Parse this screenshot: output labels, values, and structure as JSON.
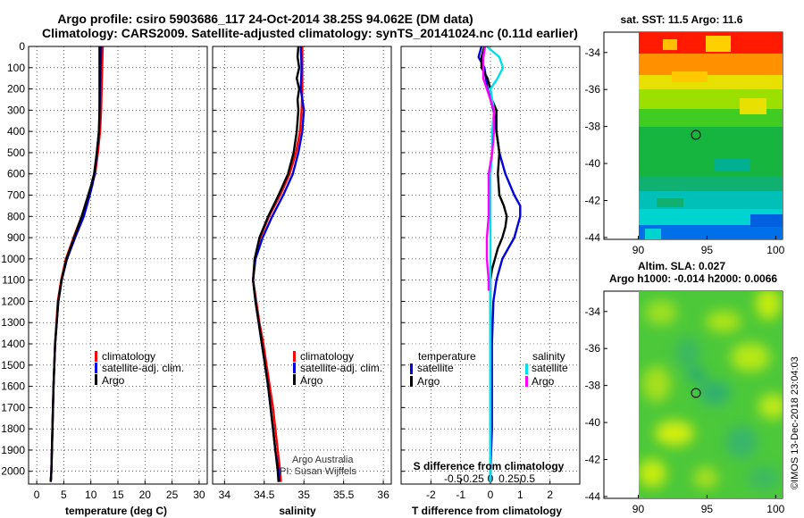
{
  "title_line1": "Argo profile: csiro 5903686_117 24-Oct-2014 38.25S 94.062E (DM data)",
  "title_line2": "Climatology: CARS2009. Satellite-adjusted climatology: synTS_20141024.nc (0.11d earlier)",
  "colors": {
    "climatology": "#ff0000",
    "satellite": "#0000dd",
    "argo": "#000000",
    "sal_satellite": "#00e0e8",
    "sal_argo": "#ff00ff"
  },
  "depth_ticks": [
    "0",
    "100",
    "200",
    "300",
    "400",
    "500",
    "600",
    "700",
    "800",
    "900",
    "1000",
    "1100",
    "1200",
    "1300",
    "1400",
    "1500",
    "1600",
    "1700",
    "1800",
    "1900",
    "2000"
  ],
  "chart_data": [
    {
      "type": "line",
      "xlabel": "temperature (deg C)",
      "ylabel": "",
      "xlim": [
        -1.5,
        31.5
      ],
      "ylim": [
        2060,
        0
      ],
      "xticks": [
        "0",
        "5",
        "10",
        "15",
        "20",
        "25",
        "30"
      ],
      "legend": [
        "climatology",
        "satellite-adj. clim.",
        "Argo"
      ],
      "series": [
        {
          "name": "climatology",
          "depth": [
            0,
            100,
            200,
            300,
            400,
            500,
            600,
            650,
            700,
            800,
            900,
            1000,
            1100,
            1200,
            1400,
            1600,
            1800,
            2000,
            2050
          ],
          "values": [
            12.2,
            12.1,
            12.0,
            11.9,
            11.7,
            11.3,
            10.8,
            10.2,
            9.6,
            8.3,
            6.8,
            5.4,
            4.5,
            3.9,
            3.4,
            3.1,
            2.9,
            2.7,
            2.6
          ]
        },
        {
          "name": "satellite-adj. clim.",
          "depth": [
            0,
            100,
            200,
            300,
            400,
            500,
            600,
            650,
            700,
            800,
            900,
            1000,
            1100,
            1200,
            1400,
            1600,
            1800,
            2000,
            2050
          ],
          "values": [
            11.9,
            11.8,
            11.7,
            11.6,
            11.5,
            11.1,
            10.7,
            10.3,
            9.8,
            8.7,
            7.1,
            5.6,
            4.6,
            4.0,
            3.4,
            3.1,
            2.9,
            2.7,
            2.6
          ]
        },
        {
          "name": "Argo",
          "depth": [
            0,
            100,
            200,
            300,
            400,
            500,
            600,
            650,
            700,
            800,
            900,
            1000,
            1100,
            1200,
            1400,
            1600,
            1800,
            2000,
            2050
          ],
          "values": [
            11.6,
            11.6,
            11.6,
            11.6,
            11.5,
            11.1,
            10.6,
            10.1,
            9.5,
            8.3,
            6.9,
            5.5,
            4.6,
            4.0,
            3.4,
            3.1,
            2.9,
            2.7,
            2.6
          ]
        }
      ]
    },
    {
      "type": "line",
      "xlabel": "salinity",
      "ylabel": "",
      "xlim": [
        33.85,
        36.1
      ],
      "ylim": [
        2060,
        0
      ],
      "xticks": [
        "34",
        "34.5",
        "35",
        "35.5",
        "36"
      ],
      "legend": [
        "climatology",
        "satellite-adj. clim.",
        "Argo"
      ],
      "annotation": [
        "Argo Australia",
        "PI: Susan Wijffels"
      ],
      "series": [
        {
          "name": "climatology",
          "depth": [
            0,
            100,
            200,
            300,
            400,
            500,
            600,
            700,
            800,
            900,
            1000,
            1100,
            1200,
            1300,
            1400,
            1500,
            1600,
            1700,
            1800,
            1900,
            2000,
            2050
          ],
          "values": [
            34.98,
            34.98,
            34.98,
            34.97,
            34.95,
            34.9,
            34.82,
            34.7,
            34.56,
            34.45,
            34.38,
            34.36,
            34.4,
            34.44,
            34.49,
            34.53,
            34.57,
            34.61,
            34.64,
            34.67,
            34.7,
            34.71
          ]
        },
        {
          "name": "satellite-adj. clim.",
          "depth": [
            0,
            100,
            200,
            300,
            400,
            500,
            600,
            700,
            800,
            900,
            1000,
            1100,
            1200,
            1300,
            1400,
            1500,
            1600,
            1700,
            1800,
            1900,
            2000,
            2050
          ],
          "values": [
            34.96,
            34.97,
            34.96,
            35.0,
            34.98,
            34.93,
            34.86,
            34.74,
            34.6,
            34.48,
            34.39,
            34.36,
            34.39,
            34.43,
            34.47,
            34.51,
            34.55,
            34.58,
            34.61,
            34.64,
            34.68,
            34.69
          ]
        },
        {
          "name": "Argo",
          "depth": [
            0,
            50,
            100,
            150,
            200,
            250,
            300,
            400,
            500,
            600,
            700,
            800,
            900,
            1000,
            1100,
            1200,
            1300,
            1400,
            1500,
            1600,
            1700,
            1800,
            1900,
            2000,
            2050
          ],
          "values": [
            34.93,
            34.92,
            34.94,
            34.91,
            34.94,
            34.92,
            34.93,
            34.91,
            34.87,
            34.8,
            34.68,
            34.55,
            34.44,
            34.38,
            34.36,
            34.39,
            34.43,
            34.47,
            34.51,
            34.55,
            34.58,
            34.61,
            34.64,
            34.67,
            34.68
          ]
        }
      ]
    },
    {
      "type": "line",
      "xlabel": "T difference from climatology",
      "xlabel_top": "S difference from climatology",
      "xlim": [
        -3.0,
        3.0
      ],
      "ylim": [
        2060,
        0
      ],
      "xticks": [
        "-2",
        "-1",
        "0",
        "1",
        "2"
      ],
      "xticks_top": [
        "-0.5",
        "-0.25",
        "0",
        "0.25",
        "0.5"
      ],
      "legend_left_title": "temperature",
      "legend_right_title": "salinity",
      "legend": [
        "satellite",
        "Argo"
      ],
      "series": [
        {
          "name": "temperature satellite",
          "depth": [
            0,
            50,
            100,
            200,
            300,
            400,
            500,
            600,
            700,
            750,
            800,
            850,
            900,
            950,
            1000,
            1050,
            1100,
            1200,
            1400,
            1600,
            1800,
            2000,
            2050
          ],
          "values": [
            -0.3,
            -0.4,
            -0.2,
            -0.1,
            0.1,
            0.2,
            0.3,
            0.5,
            0.8,
            1.0,
            1.0,
            0.9,
            0.8,
            0.6,
            0.4,
            0.3,
            0.2,
            0.1,
            0.05,
            0.05,
            0.05,
            0.0,
            0.0
          ]
        },
        {
          "name": "temperature Argo",
          "depth": [
            0,
            50,
            100,
            150,
            200,
            250,
            300,
            400,
            500,
            600,
            700,
            750,
            800,
            850,
            900,
            950,
            1000,
            1050,
            1100,
            1200,
            1400,
            1600,
            1800,
            2000,
            2050
          ],
          "values": [
            -0.2,
            -0.3,
            -0.3,
            -0.1,
            0.0,
            0.05,
            0.2,
            0.2,
            0.3,
            0.25,
            0.3,
            0.45,
            0.55,
            0.5,
            0.4,
            0.25,
            0.15,
            0.05,
            0.0,
            0.0,
            0.0,
            0.0,
            0.0,
            0.0,
            0.0
          ]
        },
        {
          "name": "salinity satellite",
          "depth": [
            0,
            50,
            100,
            150,
            200,
            300,
            400,
            500,
            600,
            700,
            800,
            900,
            1000,
            1100,
            1200,
            1400,
            1600,
            1800,
            2000,
            2050
          ],
          "values": [
            -0.02,
            0.05,
            0.07,
            0.04,
            0.0,
            0.02,
            0.01,
            0.01,
            0.0,
            0.0,
            0.0,
            0.0,
            0.0,
            0.0,
            0.0,
            0.0,
            0.0,
            0.0,
            0.0,
            0.0
          ]
        },
        {
          "name": "salinity Argo",
          "depth": [
            0,
            50,
            100,
            150,
            200,
            300,
            400,
            500,
            600,
            700,
            800,
            900,
            1000,
            1100,
            1150
          ],
          "values": [
            -0.03,
            -0.04,
            -0.04,
            -0.04,
            -0.02,
            0.02,
            0.02,
            0.01,
            -0.01,
            -0.01,
            -0.01,
            -0.02,
            -0.02,
            -0.01,
            -0.01
          ]
        }
      ]
    }
  ],
  "map_top": {
    "title": "sat. SST: 11.5 Argo: 11.6",
    "xticks": [
      "90",
      "95",
      "100"
    ],
    "yticks": [
      "-34",
      "-36",
      "-38",
      "-40",
      "-42",
      "-44"
    ]
  },
  "map_bottom": {
    "title_line1": "Altim. SLA: 0.027",
    "title_line2": "Argo h1000: -0.014 h2000: 0.0066",
    "xticks": [
      "90",
      "95",
      "100"
    ],
    "yticks": [
      "-34",
      "-36",
      "-38",
      "-40",
      "-42",
      "-44"
    ]
  },
  "credit": "©IMOS 13-Dec-2018 23:04:03"
}
